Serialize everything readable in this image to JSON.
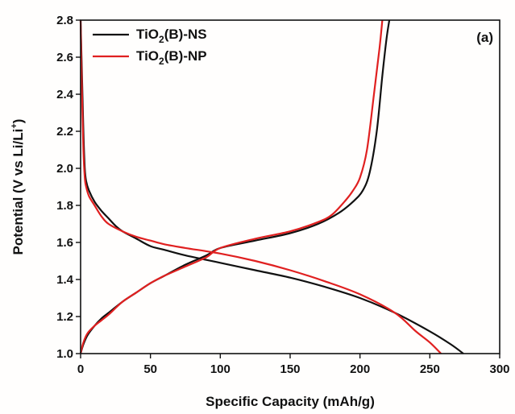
{
  "chart_data": {
    "type": "line",
    "panel_label": "(a)",
    "xlabel": "Specific Capacity (mAh/g)",
    "ylabel": {
      "prefix": "Potential (V vs Li/Li",
      "sup": "+",
      "suffix": ")"
    },
    "xlim": [
      0,
      300
    ],
    "ylim": [
      1.0,
      2.8
    ],
    "xticks": [
      0,
      50,
      100,
      150,
      200,
      250,
      300
    ],
    "yticks": [
      1.0,
      1.2,
      1.4,
      1.6,
      1.8,
      2.0,
      2.2,
      2.4,
      2.6,
      2.8
    ],
    "grid": false,
    "legend_position": "top-left",
    "series": [
      {
        "name": {
          "prefix": "TiO",
          "sub": "2",
          "suffix": "(B)-NS"
        },
        "color": "#111111",
        "curves": [
          {
            "segment": "discharge",
            "points": [
              [
                0,
                2.8
              ],
              [
                1,
                2.5
              ],
              [
                2,
                2.2
              ],
              [
                3,
                2.0
              ],
              [
                4,
                1.93
              ],
              [
                6,
                1.88
              ],
              [
                10,
                1.82
              ],
              [
                15,
                1.77
              ],
              [
                20,
                1.73
              ],
              [
                25,
                1.69
              ],
              [
                30,
                1.66
              ],
              [
                40,
                1.62
              ],
              [
                50,
                1.58
              ],
              [
                60,
                1.56
              ],
              [
                75,
                1.53
              ],
              [
                100,
                1.49
              ],
              [
                125,
                1.45
              ],
              [
                150,
                1.41
              ],
              [
                175,
                1.36
              ],
              [
                200,
                1.3
              ],
              [
                225,
                1.22
              ],
              [
                250,
                1.12
              ],
              [
                265,
                1.05
              ],
              [
                274,
                1.0
              ]
            ]
          },
          {
            "segment": "charge",
            "points": [
              [
                0,
                1.0
              ],
              [
                2,
                1.05
              ],
              [
                5,
                1.1
              ],
              [
                10,
                1.15
              ],
              [
                15,
                1.19
              ],
              [
                20,
                1.22
              ],
              [
                30,
                1.28
              ],
              [
                40,
                1.33
              ],
              [
                50,
                1.38
              ],
              [
                60,
                1.42
              ],
              [
                75,
                1.48
              ],
              [
                90,
                1.53
              ],
              [
                100,
                1.57
              ],
              [
                125,
                1.61
              ],
              [
                150,
                1.65
              ],
              [
                170,
                1.7
              ],
              [
                185,
                1.76
              ],
              [
                195,
                1.82
              ],
              [
                202,
                1.88
              ],
              [
                207,
                1.98
              ],
              [
                212,
                2.2
              ],
              [
                216,
                2.5
              ],
              [
                219,
                2.7
              ],
              [
                221,
                2.8
              ]
            ]
          }
        ]
      },
      {
        "name": {
          "prefix": "TiO",
          "sub": "2",
          "suffix": "(B)-NP"
        },
        "color": "#e02020",
        "curves": [
          {
            "segment": "discharge",
            "points": [
              [
                0,
                2.8
              ],
              [
                1,
                2.4
              ],
              [
                2,
                2.1
              ],
              [
                3,
                1.95
              ],
              [
                4,
                1.9
              ],
              [
                6,
                1.85
              ],
              [
                10,
                1.8
              ],
              [
                15,
                1.74
              ],
              [
                20,
                1.7
              ],
              [
                30,
                1.66
              ],
              [
                40,
                1.63
              ],
              [
                50,
                1.61
              ],
              [
                60,
                1.59
              ],
              [
                75,
                1.57
              ],
              [
                100,
                1.54
              ],
              [
                125,
                1.5
              ],
              [
                150,
                1.45
              ],
              [
                175,
                1.39
              ],
              [
                200,
                1.32
              ],
              [
                225,
                1.22
              ],
              [
                240,
                1.12
              ],
              [
                250,
                1.06
              ],
              [
                258,
                1.0
              ]
            ]
          },
          {
            "segment": "charge",
            "points": [
              [
                0,
                1.0
              ],
              [
                2,
                1.06
              ],
              [
                5,
                1.11
              ],
              [
                10,
                1.15
              ],
              [
                15,
                1.18
              ],
              [
                20,
                1.21
              ],
              [
                30,
                1.28
              ],
              [
                40,
                1.33
              ],
              [
                50,
                1.38
              ],
              [
                60,
                1.42
              ],
              [
                75,
                1.47
              ],
              [
                90,
                1.52
              ],
              [
                100,
                1.57
              ],
              [
                125,
                1.62
              ],
              [
                150,
                1.66
              ],
              [
                170,
                1.71
              ],
              [
                180,
                1.75
              ],
              [
                190,
                1.83
              ],
              [
                195,
                1.88
              ],
              [
                200,
                1.95
              ],
              [
                205,
                2.1
              ],
              [
                210,
                2.4
              ],
              [
                214,
                2.65
              ],
              [
                216,
                2.8
              ]
            ]
          }
        ]
      }
    ]
  }
}
